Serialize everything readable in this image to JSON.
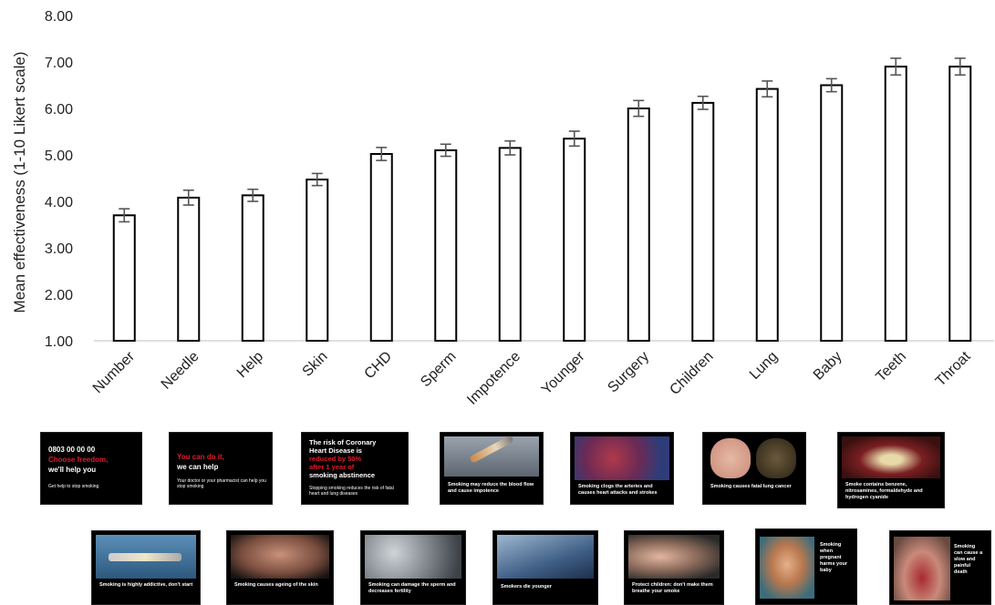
{
  "chart_data": {
    "type": "bar",
    "ylabel": "Mean effectiveness (1-10 Likert scale)",
    "ylim": [
      1,
      8
    ],
    "yticks": [
      "1.00",
      "2.00",
      "3.00",
      "4.00",
      "5.00",
      "6.00",
      "7.00",
      "8.00"
    ],
    "categories": [
      "Number",
      "Needle",
      "Help",
      "Skin",
      "CHD",
      "Sperm",
      "Impotence",
      "Younger",
      "Surgery",
      "Children",
      "Lung",
      "Baby",
      "Teeth",
      "Throat"
    ],
    "values": [
      3.7,
      4.08,
      4.13,
      4.47,
      5.02,
      5.1,
      5.15,
      5.35,
      6.0,
      6.12,
      6.42,
      6.5,
      6.9,
      6.9
    ],
    "errors": [
      0.14,
      0.16,
      0.13,
      0.13,
      0.14,
      0.13,
      0.15,
      0.16,
      0.17,
      0.14,
      0.17,
      0.14,
      0.18,
      0.18
    ],
    "bar_fill": "#ffffff",
    "bar_stroke": "#000000",
    "error_color": "#555555"
  },
  "thumbnails": {
    "row1": [
      {
        "lines": [
          "0803 00 00 00",
          "Choose freedom,",
          "we'll help you"
        ],
        "small": "Get help to stop smoking"
      },
      {
        "lines": [
          "You can do it,",
          "we can help"
        ],
        "small": "Your doctor or your pharmacist can help you stop smoking"
      },
      {
        "lines": [
          "The risk of Coronary",
          "Heart Disease is",
          "reduced by 50%",
          "after 1 year of",
          "smoking abstinence"
        ],
        "small": "Stopping smoking reduces the risk of fatal heart and lung diseases"
      },
      {
        "caption": "Smoking may reduce the blood flow and cause impotence"
      },
      {
        "caption": "Smoking clogs the arteries and causes heart attacks and strokes"
      },
      {
        "caption": "Smoking causes fatal lung cancer"
      },
      {
        "caption": "Smoke contains benzene, nitrosamines, formaldehyde and hydrogen cyanide"
      }
    ],
    "row2": [
      {
        "caption": "Smoking is highly addictive, don't start"
      },
      {
        "caption": "Smoking causes ageing of the skin"
      },
      {
        "caption": "Smoking can damage the sperm and decreases fertility"
      },
      {
        "caption": "Smokers die younger"
      },
      {
        "caption": "Protect children: don't make them breathe your smoke"
      },
      {
        "caption": "Smoking when pregnant harms your baby"
      },
      {
        "caption": "Smoking can cause a slow and painful death"
      }
    ]
  }
}
